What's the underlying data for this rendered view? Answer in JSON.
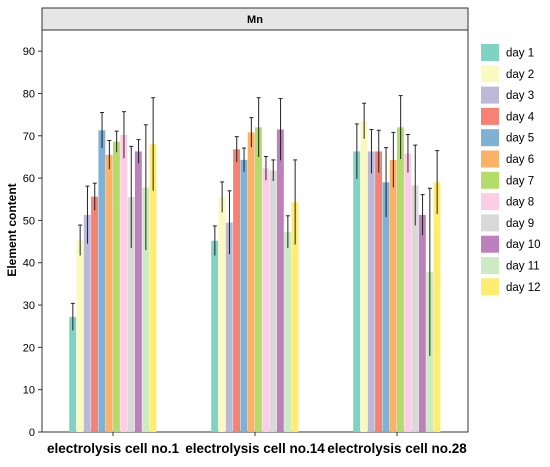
{
  "chart_data": {
    "type": "bar",
    "title": "Mn",
    "xlabel": "",
    "ylabel": "Element content",
    "ylim": [
      0,
      95
    ],
    "yticks": [
      0,
      10,
      20,
      30,
      40,
      50,
      60,
      70,
      80,
      90
    ],
    "grid": false,
    "legend_position": "right",
    "categories": [
      "electrolysis cell no.1",
      "electrolysis cell no.14",
      "electrolysis cell no.28"
    ],
    "series": [
      {
        "name": "day 1",
        "color": "#7fd3c4",
        "values": [
          27.2,
          45.2,
          66.3
        ],
        "errors": [
          3.2,
          3.5,
          6.5
        ]
      },
      {
        "name": "day 2",
        "color": "#fafac0",
        "values": [
          45.3,
          55.5,
          73.5
        ],
        "errors": [
          3.6,
          3.6,
          4.2
        ]
      },
      {
        "name": "day 3",
        "color": "#bcb8d8",
        "values": [
          51.3,
          49.5,
          66.3
        ],
        "errors": [
          6.8,
          7.5,
          5.2
        ]
      },
      {
        "name": "day 4",
        "color": "#f78172",
        "values": [
          55.6,
          66.8,
          66.3
        ],
        "errors": [
          3.2,
          3.0,
          5.0
        ]
      },
      {
        "name": "day 5",
        "color": "#80b0d3",
        "values": [
          71.3,
          64.3,
          59.0
        ],
        "errors": [
          4.2,
          2.8,
          8.2
        ]
      },
      {
        "name": "day 6",
        "color": "#fbb267",
        "values": [
          65.5,
          70.8,
          64.3
        ],
        "errors": [
          3.4,
          3.5,
          6.5
        ]
      },
      {
        "name": "day 7",
        "color": "#b3dd6b",
        "values": [
          68.6,
          72.0,
          72.0
        ],
        "errors": [
          2.5,
          7.0,
          7.5
        ]
      },
      {
        "name": "day 8",
        "color": "#fccde5",
        "values": [
          70.2,
          62.3,
          65.8
        ],
        "errors": [
          5.5,
          2.8,
          4.5
        ]
      },
      {
        "name": "day 9",
        "color": "#d9d9d9",
        "values": [
          55.5,
          61.8,
          58.3
        ],
        "errors": [
          12.0,
          2.5,
          9.5
        ]
      },
      {
        "name": "day 10",
        "color": "#bd80bd",
        "values": [
          66.3,
          71.5,
          51.3
        ],
        "errors": [
          2.8,
          7.3,
          4.8
        ]
      },
      {
        "name": "day 11",
        "color": "#ccebc5",
        "values": [
          57.8,
          47.3,
          37.8
        ],
        "errors": [
          14.8,
          3.8,
          19.8
        ]
      },
      {
        "name": "day 12",
        "color": "#ffed6f",
        "values": [
          68.0,
          54.3,
          59.0
        ],
        "errors": [
          11.0,
          10.0,
          7.5
        ]
      }
    ]
  }
}
